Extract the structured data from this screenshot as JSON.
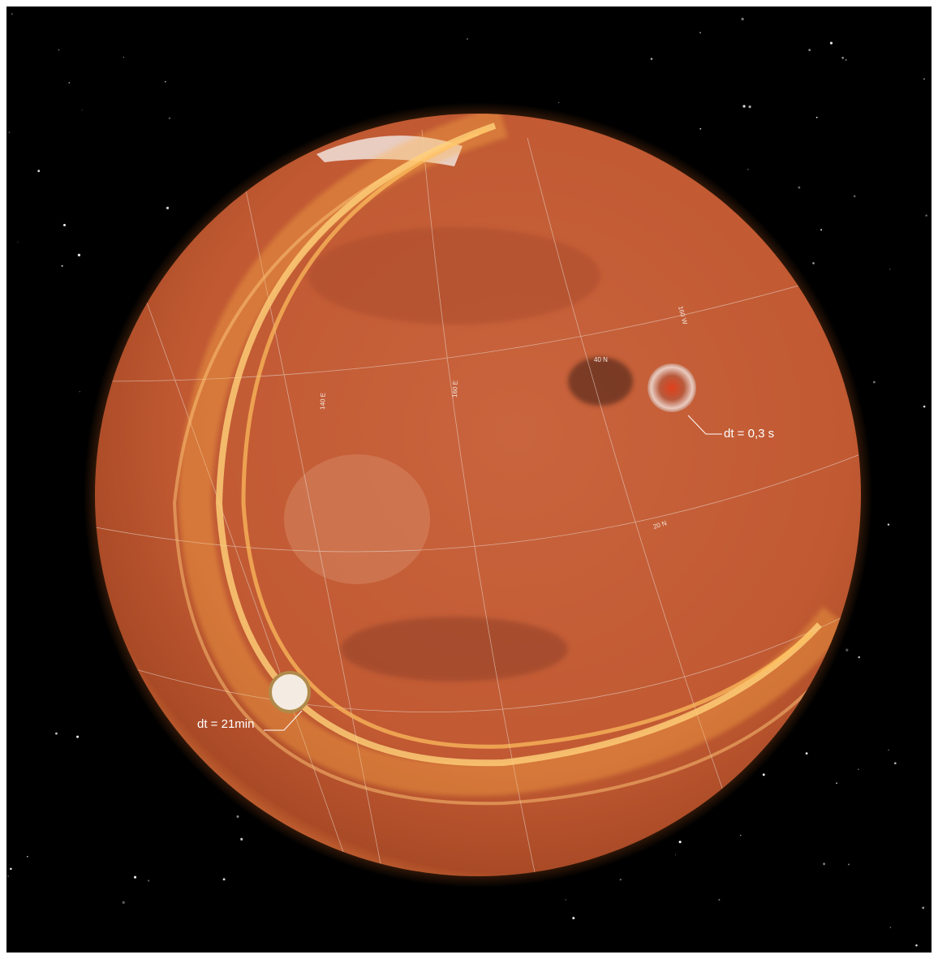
{
  "annotations": {
    "impact": "dt = 0,3 s",
    "lander": "dt = 21min"
  },
  "grid_labels": {
    "lon_140e": "140 E",
    "lon_160e": "160 E",
    "lat_40n": "40 N",
    "lat_20n": "20 N",
    "lon_160w": "160 W"
  }
}
